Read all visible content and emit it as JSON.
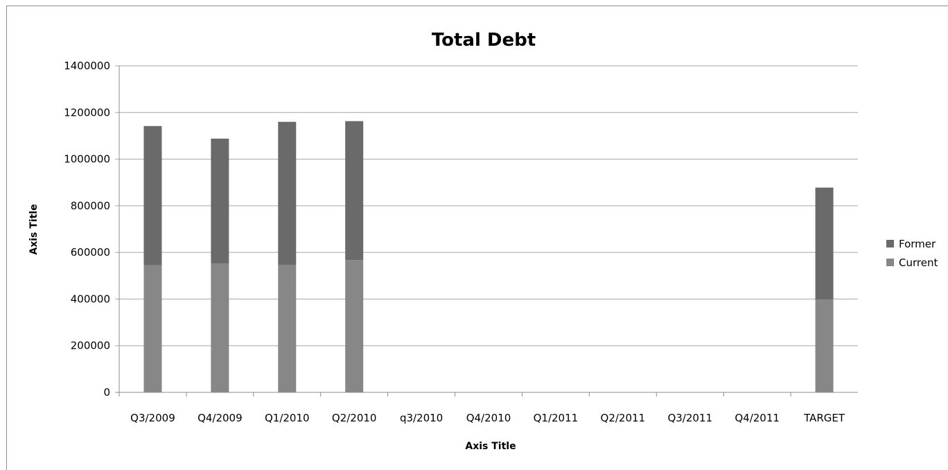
{
  "chart_data": {
    "type": "bar",
    "stacked": true,
    "title": "Total Debt",
    "xlabel": "Axis Title",
    "ylabel": "Axis Title",
    "ylim": [
      0,
      1400000
    ],
    "yticks": [
      "0",
      "200000",
      "400000",
      "600000",
      "800000",
      "1000000",
      "1200000",
      "1400000"
    ],
    "grid": true,
    "legend_position": "right",
    "categories": [
      "Q3/2009",
      "Q4/2009",
      "Q1/2010",
      "Q2/2010",
      "q3/2010",
      "Q4/2010",
      "Q1/2011",
      "Q2/2011",
      "Q3/2011",
      "Q4/2011",
      "TARGET"
    ],
    "series": [
      {
        "name": "Current",
        "color": "#878787",
        "values": [
          545000,
          553000,
          547000,
          567000,
          0,
          0,
          0,
          0,
          0,
          0,
          398000
        ]
      },
      {
        "name": "Former",
        "color": "#6a6a6a",
        "values": [
          597000,
          535000,
          613000,
          596000,
          0,
          0,
          0,
          0,
          0,
          0,
          480000
        ]
      }
    ],
    "legend_order": [
      "Former",
      "Current"
    ]
  }
}
